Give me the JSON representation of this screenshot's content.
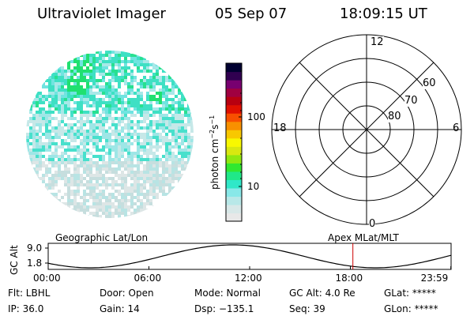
{
  "header": {
    "title": "Ultraviolet Imager",
    "date": "05 Sep 07",
    "time": "18:09:15 UT"
  },
  "colorbar": {
    "label_unit": "photon cm",
    "label_exp1": "−2",
    "label_s": "s",
    "label_exp2": "−1",
    "tick_100": "100",
    "tick_10": "10",
    "colors": [
      "#e8e8e8",
      "#d8e8e8",
      "#b8e8e8",
      "#88e8e8",
      "#30e8c8",
      "#20e888",
      "#30e830",
      "#90e810",
      "#d8e810",
      "#f8f800",
      "#f8c800",
      "#f89000",
      "#f85000",
      "#e01000",
      "#b80010",
      "#a00040",
      "#780070",
      "#300050",
      "#000030"
    ]
  },
  "polar": {
    "mlt_top": "12",
    "mlt_left": "18",
    "mlt_right": "6",
    "mlt_bottom": "0",
    "lat_60": "60",
    "lat_70": "70",
    "lat_80": "80"
  },
  "orbit": {
    "left_caption": "Geographic Lat/Lon",
    "right_caption": "Apex MLat/MLT",
    "axis_label": "GC Alt",
    "y_top": "9.0",
    "y_bottom": "1.8",
    "x_ticks": [
      "00:00",
      "06:00",
      "12:00",
      "18:00",
      "23:59"
    ],
    "marker_color": "#cc0000",
    "marker_time_hours": 18.15
  },
  "status": {
    "flt": "Flt: LBHL",
    "ip": "IP: 36.0",
    "door": "Door: Open",
    "gain": "Gain: 14",
    "mode": "Mode: Normal",
    "dsp": "Dsp: −135.1",
    "gc_alt": "GC Alt: 4.0 Re",
    "seq": "Seq: 39",
    "glat": "GLat: *****",
    "glon": "GLon: *****"
  }
}
